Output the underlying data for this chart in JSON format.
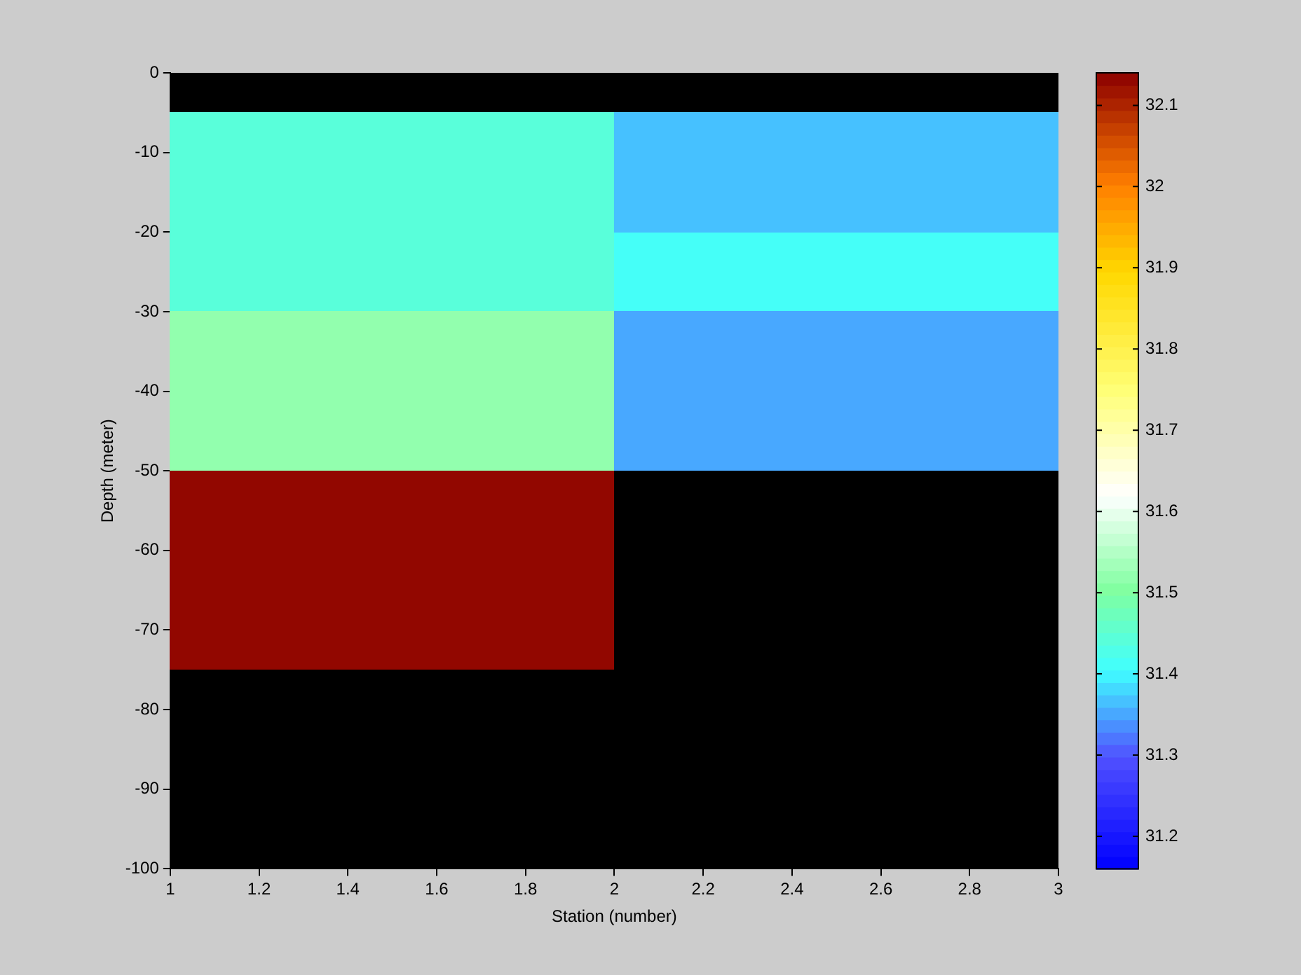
{
  "chart_data": {
    "type": "heatmap",
    "xlabel": "Station (number)",
    "ylabel": "Depth (meter)",
    "x": [
      1.5,
      2.5
    ],
    "y": [
      -7.5,
      -12.5,
      -17.5,
      -22.5,
      -27.5,
      -32.5,
      -37.5,
      -42.5,
      -47.5,
      -52.5,
      -57.5,
      -62.5,
      -67.5,
      -72.5
    ],
    "cells": [
      [
        31.45,
        31.37
      ],
      [
        31.45,
        31.37
      ],
      [
        31.45,
        31.37
      ],
      [
        31.45,
        31.41
      ],
      [
        31.45,
        31.41
      ],
      [
        31.52,
        31.35
      ],
      [
        31.52,
        31.35
      ],
      [
        31.52,
        31.35
      ],
      [
        31.52,
        31.35
      ],
      [
        32.13,
        null
      ],
      [
        32.13,
        null
      ],
      [
        32.13,
        null
      ],
      [
        32.13,
        null
      ],
      [
        32.13,
        null
      ]
    ],
    "xlim": [
      1,
      3
    ],
    "xticks": [
      1,
      1.2,
      1.4,
      1.6,
      1.8,
      2,
      2.2,
      2.4,
      2.6,
      2.8,
      3
    ],
    "ylim": [
      -100,
      0
    ],
    "yticks": [
      -100,
      -90,
      -80,
      -70,
      -60,
      -50,
      -40,
      -30,
      -20,
      -10,
      0
    ],
    "clim": [
      31.16,
      32.14
    ],
    "cticks": [
      31.2,
      31.3,
      31.4,
      31.5,
      31.6,
      31.7,
      31.8,
      31.9,
      32,
      32.1
    ]
  }
}
